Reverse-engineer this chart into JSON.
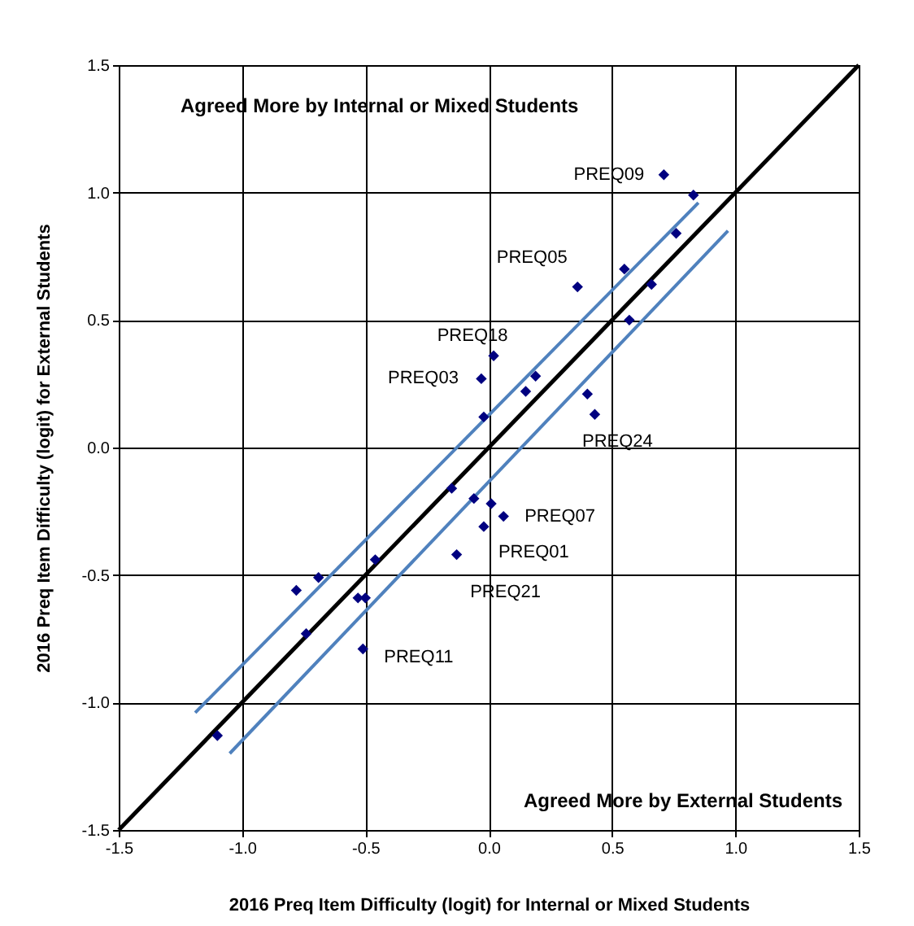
{
  "chart_data": {
    "type": "scatter",
    "xlabel": "2016 Preq Item Difficulty (logit) for Internal or Mixed Students",
    "ylabel": "2016 Preq Item Difficulty (logit) for External Students",
    "xlim": [
      -1.5,
      1.5
    ],
    "ylim": [
      -1.5,
      1.5
    ],
    "xticks": [
      -1.5,
      {
        "value": -1,
        "label": "-1.0"
      },
      -0.5,
      {
        "value": 0,
        "label": "0.0"
      },
      0.5,
      {
        "value": 1,
        "label": "1.0"
      },
      1.5
    ],
    "yticks": [
      -1.5,
      {
        "value": -1,
        "label": "-1.0"
      },
      -0.5,
      {
        "value": 0,
        "label": "0.0"
      },
      0.5,
      {
        "value": 1,
        "label": "1.0"
      },
      1.5
    ],
    "grid": true,
    "marker": "diamond",
    "series": [
      {
        "color": "#000080",
        "x": [
          0.71,
          0.83,
          0.76,
          0.36,
          0.55,
          0.66,
          0.57,
          0.02,
          -0.03,
          0.19,
          0.15,
          0.4,
          0.43,
          -0.02,
          -0.15,
          -0.06,
          0.01,
          0.06,
          -0.02,
          -0.13,
          -0.46,
          -0.69,
          -0.78,
          -0.53,
          -0.5,
          -0.74,
          -0.51,
          -1.1
        ],
        "values": [
          1.07,
          0.99,
          0.84,
          0.63,
          0.7,
          0.64,
          0.5,
          0.36,
          0.27,
          0.28,
          0.22,
          0.21,
          0.13,
          0.12,
          -0.16,
          -0.2,
          -0.22,
          -0.27,
          -0.31,
          -0.42,
          -0.44,
          -0.51,
          -0.56,
          -0.59,
          -0.59,
          -0.73,
          -0.79,
          -1.13
        ]
      },
      {
        "type": "line",
        "marker": "none",
        "color": "#000000",
        "x": [
          -1.5,
          1.5
        ],
        "values": [
          -1.5,
          1.5
        ]
      },
      {
        "type": "line",
        "marker": "none",
        "color": "#4f81bd",
        "x": [
          -1.19,
          0.85
        ],
        "values": [
          -1.04,
          0.96
        ]
      },
      {
        "type": "line",
        "marker": "none",
        "color": "#4f81bd",
        "x": [
          -1.05,
          0.97
        ],
        "values": [
          -1.2,
          0.85
        ]
      }
    ],
    "annotations": [
      {
        "text": "PREQ09",
        "x": 0.71,
        "y": 1.07
      },
      {
        "text": "PREQ05",
        "x": 0.36,
        "y": 0.63
      },
      {
        "text": "PREQ18",
        "x": 0.02,
        "y": 0.36
      },
      {
        "text": "PREQ03",
        "x": -0.03,
        "y": 0.27
      },
      {
        "text": "PREQ24",
        "x": 0.43,
        "y": 0.13
      },
      {
        "text": "PREQ07",
        "x": 0.06,
        "y": -0.27
      },
      {
        "text": "PREQ01",
        "x": -0.02,
        "y": -0.31
      },
      {
        "text": "PREQ21",
        "x": -0.13,
        "y": -0.42
      },
      {
        "text": "PREQ11",
        "x": -0.51,
        "y": -0.79
      },
      "Agreed More by Internal or Mixed Students",
      "Agreed More by External Students"
    ]
  }
}
